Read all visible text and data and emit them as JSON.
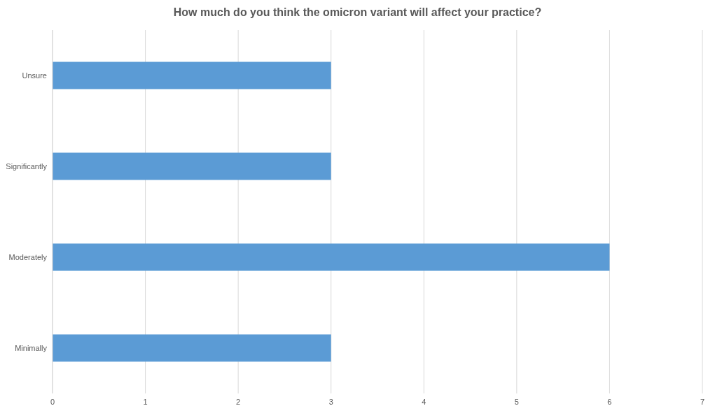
{
  "chart_data": {
    "type": "bar",
    "orientation": "horizontal",
    "title": "How much do you think the omicron variant will affect your practice?",
    "categories": [
      "Unsure",
      "Significantly",
      "Moderately",
      "Minimally"
    ],
    "values": [
      3,
      3,
      6,
      3
    ],
    "color": "#5b9bd5",
    "xlim": [
      0,
      7
    ],
    "xticks": [
      0,
      1,
      2,
      3,
      4,
      5,
      6,
      7
    ],
    "grid": "x"
  }
}
